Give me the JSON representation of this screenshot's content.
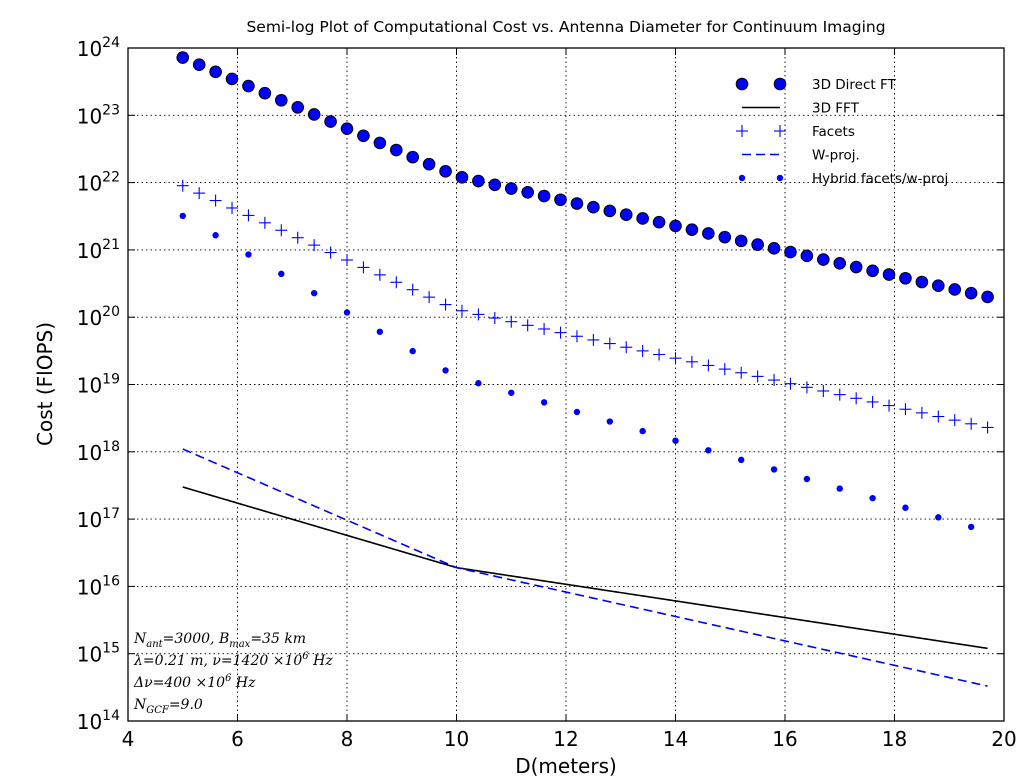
{
  "chart_data": {
    "type": "scatter",
    "title": "Semi-log Plot of Computational Cost vs. Antenna Diameter for Continuum Imaging",
    "xlabel": "D(meters)",
    "ylabel": "Cost (FlOPS)",
    "xlim": [
      4,
      20
    ],
    "ylim": [
      100000000000000.0,
      1e+24
    ],
    "yscale": "log",
    "grid": true,
    "legend_position": "top-right",
    "xticks": [
      4,
      6,
      8,
      10,
      12,
      14,
      16,
      18,
      20
    ],
    "yticks": [
      {
        "base": "10",
        "exp": "14",
        "value": 100000000000000.0
      },
      {
        "base": "10",
        "exp": "15",
        "value": 1000000000000000.0
      },
      {
        "base": "10",
        "exp": "16",
        "value": 1e+16
      },
      {
        "base": "10",
        "exp": "17",
        "value": 1e+17
      },
      {
        "base": "10",
        "exp": "18",
        "value": 1e+18
      },
      {
        "base": "10",
        "exp": "19",
        "value": 1e+19
      },
      {
        "base": "10",
        "exp": "20",
        "value": 1e+20
      },
      {
        "base": "10",
        "exp": "21",
        "value": 1e+21
      },
      {
        "base": "10",
        "exp": "22",
        "value": 1e+22
      },
      {
        "base": "10",
        "exp": "23",
        "value": 1e+23
      },
      {
        "base": "10",
        "exp": "24",
        "value": 1e+24
      }
    ],
    "x_range": {
      "start": 5,
      "end": 19.7,
      "step": 0.3
    },
    "series": [
      {
        "name": "3D Direct FT",
        "style": "large-circle",
        "color": "#0000ff",
        "anchors": [
          [
            5,
            7.2e+23
          ],
          [
            10,
            1.25e+22
          ],
          [
            19.7,
            2e+20
          ]
        ],
        "step": 1
      },
      {
        "name": "3D FFT",
        "style": "solid-line",
        "color": "#000000",
        "anchors": [
          [
            5,
            3e+17
          ],
          [
            10,
            1.9e+16
          ],
          [
            19.7,
            1200000000000000.0
          ]
        ]
      },
      {
        "name": "Facets",
        "style": "plus",
        "color": "#0000ff",
        "anchors": [
          [
            5,
            9e+21
          ],
          [
            10,
            1.3e+20
          ],
          [
            19.7,
            2.3e+18
          ]
        ],
        "step": 1
      },
      {
        "name": "W-proj.",
        "style": "dashed-line",
        "color": "#0000ff",
        "anchors": [
          [
            5,
            1.1e+18
          ],
          [
            10,
            1.9e+16
          ],
          [
            19.7,
            330000000000000.0
          ]
        ]
      },
      {
        "name": "Hybrid facets/w-proj",
        "style": "small-dot",
        "color": "#0000ff",
        "anchors": [
          [
            5,
            3.2e+21
          ],
          [
            10,
            1.3e+19
          ],
          [
            19.7,
            6.5e+16
          ]
        ],
        "step": 2
      }
    ],
    "annotations": [
      {
        "parts": [
          {
            "t": "N"
          },
          {
            "t": "ant",
            "sub": true
          },
          {
            "t": "=3000, "
          },
          {
            "t": "B"
          },
          {
            "t": "max",
            "sub": true
          },
          {
            "t": "=35 km"
          }
        ]
      },
      {
        "parts": [
          {
            "t": "λ=0.21 m, ν=1420 ×10"
          },
          {
            "t": "6",
            "sup": true
          },
          {
            "t": " Hz"
          }
        ]
      },
      {
        "parts": [
          {
            "t": "Δν=400 ×10"
          },
          {
            "t": "6",
            "sup": true
          },
          {
            "t": " Hz"
          }
        ]
      },
      {
        "parts": [
          {
            "t": "N"
          },
          {
            "t": "GCF",
            "sub": true
          },
          {
            "t": "=9.0"
          }
        ]
      }
    ]
  }
}
